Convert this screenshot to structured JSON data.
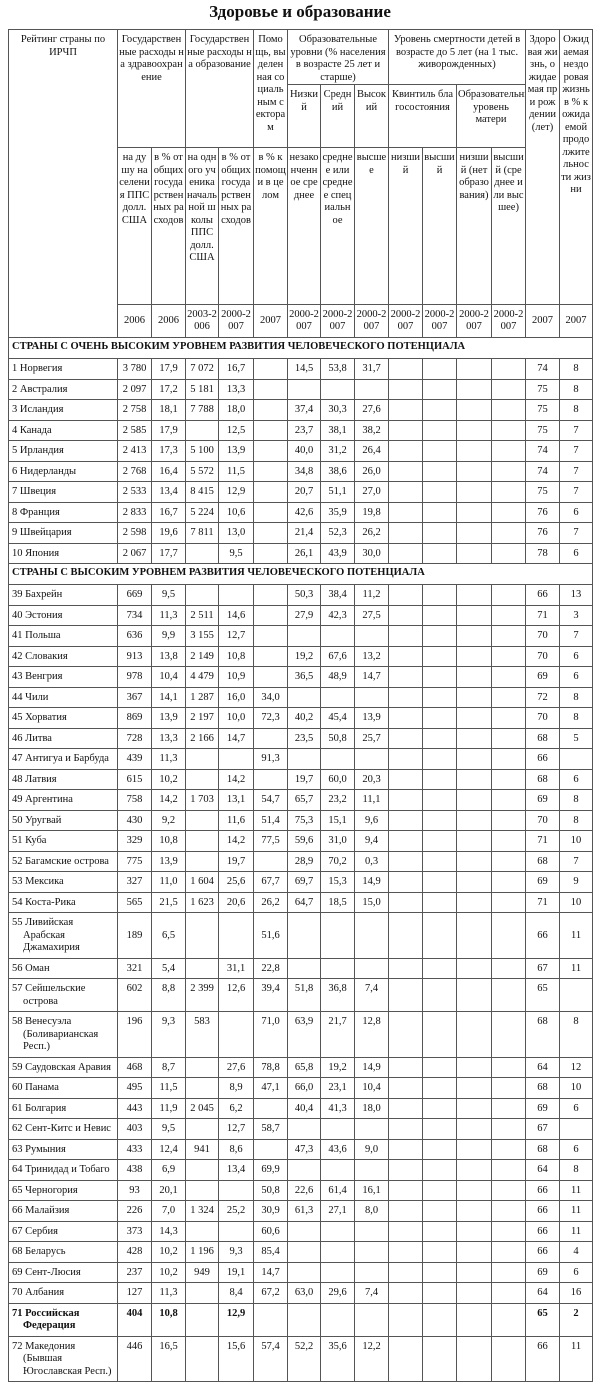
{
  "title": "Здоровье и образование",
  "header": {
    "rank": "Рейтинг страны по ИРЧП",
    "health_spend": "Государственные расходы на здравоохранение",
    "edu_spend": "Государственные расходы на образование",
    "social_aid": "Помощь, выделенная социальным секторам",
    "edu_levels": "Образовательные уровни (% населения в возрасте 25 лет и старше)",
    "child_mortality": "Уровень смертности детей в возрасте до 5 лет (на 1 тыс. живорожденных)",
    "healthy_life": "Здоровая жизнь, ожидаемая при рождении (лет)",
    "unhealthy_life": "Ожидаемая нездоровая жизнь в % к ожидаемой продолжительности жизни",
    "low": "Низкий",
    "mid": "Средний",
    "high": "Высокий",
    "wealth_quintile": "Квинтиль благосостояния",
    "mother_edu": "Образовательный уровень матери",
    "sub": [
      "на душу населения ППС долл. США",
      "в % от общих государственных расходов",
      "на одного ученика начальной школы ППС долл. США",
      "в % от общих государственных расходов",
      "в % к помощи в целом",
      "незаконченное среднее",
      "среднее или среднее специальное",
      "высшее",
      "низший",
      "высший",
      "низший (нет образования)",
      "высший (среднее или высшее)"
    ],
    "years": [
      "2006",
      "2006",
      "2003-2006",
      "2000-2007",
      "2007",
      "2000-2007",
      "2000-2007",
      "2000-2007",
      "2000-2007",
      "2000-2007",
      "2000-2007",
      "2000-2007",
      "2007",
      "2007"
    ]
  },
  "sections": [
    {
      "title": "СТРАНЫ С ОЧЕНЬ ВЫСОКИМ УРОВНЕМ РАЗВИТИЯ ЧЕЛОВЕЧЕСКОГО ПОТЕНЦИАЛА",
      "rows": [
        {
          "cells": [
            "1 Норвегия",
            "3 780",
            "17,9",
            "7 072",
            "16,7",
            "",
            "14,5",
            "53,8",
            "31,7",
            "",
            "",
            "",
            "",
            "74",
            "8"
          ]
        },
        {
          "cells": [
            "2 Австралия",
            "2 097",
            "17,2",
            "5 181",
            "13,3",
            "",
            "",
            "",
            "",
            "",
            "",
            "",
            "",
            "75",
            "8"
          ]
        },
        {
          "cells": [
            "3 Исландия",
            "2 758",
            "18,1",
            "7 788",
            "18,0",
            "",
            "37,4",
            "30,3",
            "27,6",
            "",
            "",
            "",
            "",
            "75",
            "8"
          ]
        },
        {
          "cells": [
            "4 Канада",
            "2 585",
            "17,9",
            "",
            "12,5",
            "",
            "23,7",
            "38,1",
            "38,2",
            "",
            "",
            "",
            "",
            "75",
            "7"
          ]
        },
        {
          "cells": [
            "5 Ирландия",
            "2 413",
            "17,3",
            "5 100",
            "13,9",
            "",
            "40,0",
            "31,2",
            "26,4",
            "",
            "",
            "",
            "",
            "74",
            "7"
          ]
        },
        {
          "cells": [
            "6 Нидерланды",
            "2 768",
            "16,4",
            "5 572",
            "11,5",
            "",
            "34,8",
            "38,6",
            "26,0",
            "",
            "",
            "",
            "",
            "74",
            "7"
          ]
        },
        {
          "cells": [
            "7 Швеция",
            "2 533",
            "13,4",
            "8 415",
            "12,9",
            "",
            "20,7",
            "51,1",
            "27,0",
            "",
            "",
            "",
            "",
            "75",
            "7"
          ]
        },
        {
          "cells": [
            "8 Франция",
            "2 833",
            "16,7",
            "5 224",
            "10,6",
            "",
            "42,6",
            "35,9",
            "19,8",
            "",
            "",
            "",
            "",
            "76",
            "6"
          ]
        },
        {
          "cells": [
            "9 Швейцария",
            "2 598",
            "19,6",
            "7 811",
            "13,0",
            "",
            "21,4",
            "52,3",
            "26,2",
            "",
            "",
            "",
            "",
            "76",
            "7"
          ]
        },
        {
          "cells": [
            "10 Япония",
            "2 067",
            "17,7",
            "",
            "9,5",
            "",
            "26,1",
            "43,9",
            "30,0",
            "",
            "",
            "",
            "",
            "78",
            "6"
          ]
        }
      ]
    },
    {
      "title": "СТРАНЫ С ВЫСОКИМ УРОВНЕМ РАЗВИТИЯ ЧЕЛОВЕЧЕСКОГО ПОТЕНЦИАЛА",
      "rows": [
        {
          "cells": [
            "39 Бахрейн",
            "669",
            "9,5",
            "",
            "",
            "",
            "50,3",
            "38,4",
            "11,2",
            "",
            "",
            "",
            "",
            "66",
            "13"
          ]
        },
        {
          "cells": [
            "40 Эстония",
            "734",
            "11,3",
            "2 511",
            "14,6",
            "",
            "27,9",
            "42,3",
            "27,5",
            "",
            "",
            "",
            "",
            "71",
            "3"
          ]
        },
        {
          "cells": [
            "41 Польша",
            "636",
            "9,9",
            "3 155",
            "12,7",
            "",
            "",
            "",
            "",
            "",
            "",
            "",
            "",
            "70",
            "7"
          ]
        },
        {
          "cells": [
            "42 Словакия",
            "913",
            "13,8",
            "2 149",
            "10,8",
            "",
            "19,2",
            "67,6",
            "13,2",
            "",
            "",
            "",
            "",
            "70",
            "6"
          ]
        },
        {
          "cells": [
            "43 Венгрия",
            "978",
            "10,4",
            "4 479",
            "10,9",
            "",
            "36,5",
            "48,9",
            "14,7",
            "",
            "",
            "",
            "",
            "69",
            "6"
          ]
        },
        {
          "cells": [
            "44 Чили",
            "367",
            "14,1",
            "1 287",
            "16,0",
            "34,0",
            "",
            "",
            "",
            "",
            "",
            "",
            "",
            "72",
            "8"
          ]
        },
        {
          "cells": [
            "45 Хорватия",
            "869",
            "13,9",
            "2 197",
            "10,0",
            "72,3",
            "40,2",
            "45,4",
            "13,9",
            "",
            "",
            "",
            "",
            "70",
            "8"
          ]
        },
        {
          "cells": [
            "46 Литва",
            "728",
            "13,3",
            "2 166",
            "14,7",
            "",
            "23,5",
            "50,8",
            "25,7",
            "",
            "",
            "",
            "",
            "68",
            "5"
          ]
        },
        {
          "cells": [
            "47 Антигуа и Барбуда",
            "439",
            "11,3",
            "",
            "",
            "91,3",
            "",
            "",
            "",
            "",
            "",
            "",
            "",
            "66",
            ""
          ]
        },
        {
          "cells": [
            "48 Латвия",
            "615",
            "10,2",
            "",
            "14,2",
            "",
            "19,7",
            "60,0",
            "20,3",
            "",
            "",
            "",
            "",
            "68",
            "6"
          ]
        },
        {
          "cells": [
            "49 Аргентина",
            "758",
            "14,2",
            "1 703",
            "13,1",
            "54,7",
            "65,7",
            "23,2",
            "11,1",
            "",
            "",
            "",
            "",
            "69",
            "8"
          ]
        },
        {
          "cells": [
            "50 Уругвай",
            "430",
            "9,2",
            "",
            "11,6",
            "51,4",
            "75,3",
            "15,1",
            "9,6",
            "",
            "",
            "",
            "",
            "70",
            "8"
          ]
        },
        {
          "cells": [
            "51 Куба",
            "329",
            "10,8",
            "",
            "14,2",
            "77,5",
            "59,6",
            "31,0",
            "9,4",
            "",
            "",
            "",
            "",
            "71",
            "10"
          ]
        },
        {
          "cells": [
            "52 Багамские острова",
            "775",
            "13,9",
            "",
            "19,7",
            "",
            "28,9",
            "70,2",
            "0,3",
            "",
            "",
            "",
            "",
            "68",
            "7"
          ]
        },
        {
          "cells": [
            "53 Мексика",
            "327",
            "11,0",
            "1 604",
            "25,6",
            "67,7",
            "69,7",
            "15,3",
            "14,9",
            "",
            "",
            "",
            "",
            "69",
            "9"
          ]
        },
        {
          "cells": [
            "54 Коста-Рика",
            "565",
            "21,5",
            "1 623",
            "20,6",
            "26,2",
            "64,7",
            "18,5",
            "15,0",
            "",
            "",
            "",
            "",
            "71",
            "10"
          ]
        },
        {
          "cells": [
            "55 Ливийская Арабская Джамахирия",
            "189",
            "6,5",
            "",
            "",
            "51,6",
            "",
            "",
            "",
            "",
            "",
            "",
            "",
            "66",
            "11"
          ],
          "middle": true
        },
        {
          "cells": [
            "56 Оман",
            "321",
            "5,4",
            "",
            "31,1",
            "22,8",
            "",
            "",
            "",
            "",
            "",
            "",
            "",
            "67",
            "11"
          ]
        },
        {
          "cells": [
            "57 Сейшельские острова",
            "602",
            "8,8",
            "2 399",
            "12,6",
            "39,4",
            "51,8",
            "36,8",
            "7,4",
            "",
            "",
            "",
            "",
            "65",
            ""
          ]
        },
        {
          "cells": [
            "58 Венесуэла (Боливарианская Респ.)",
            "196",
            "9,3",
            "583",
            "",
            "71,0",
            "63,9",
            "21,7",
            "12,8",
            "",
            "",
            "",
            "",
            "68",
            "8"
          ]
        },
        {
          "cells": [
            "59 Саудовская Аравия",
            "468",
            "8,7",
            "",
            "27,6",
            "78,8",
            "65,8",
            "19,2",
            "14,9",
            "",
            "",
            "",
            "",
            "64",
            "12"
          ]
        },
        {
          "cells": [
            "60 Панама",
            "495",
            "11,5",
            "",
            "8,9",
            "47,1",
            "66,0",
            "23,1",
            "10,4",
            "",
            "",
            "",
            "",
            "68",
            "10"
          ]
        },
        {
          "cells": [
            "61 Болгария",
            "443",
            "11,9",
            "2 045",
            "6,2",
            "",
            "40,4",
            "41,3",
            "18,0",
            "",
            "",
            "",
            "",
            "69",
            "6"
          ]
        },
        {
          "cells": [
            "62 Сент-Китс и Невис",
            "403",
            "9,5",
            "",
            "12,7",
            "58,7",
            "",
            "",
            "",
            "",
            "",
            "",
            "",
            "67",
            ""
          ]
        },
        {
          "cells": [
            "63 Румыния",
            "433",
            "12,4",
            "941",
            "8,6",
            "",
            "47,3",
            "43,6",
            "9,0",
            "",
            "",
            "",
            "",
            "68",
            "6"
          ]
        },
        {
          "cells": [
            "64 Тринидад и Тобаго",
            "438",
            "6,9",
            "",
            "13,4",
            "69,9",
            "",
            "",
            "",
            "",
            "",
            "",
            "",
            "64",
            "8"
          ]
        },
        {
          "cells": [
            "65 Черногория",
            "93",
            "20,1",
            "",
            "",
            "50,8",
            "22,6",
            "61,4",
            "16,1",
            "",
            "",
            "",
            "",
            "66",
            "11"
          ]
        },
        {
          "cells": [
            "66 Малайзия",
            "226",
            "7,0",
            "1 324",
            "25,2",
            "30,9",
            "61,3",
            "27,1",
            "8,0",
            "",
            "",
            "",
            "",
            "66",
            "11"
          ]
        },
        {
          "cells": [
            "67 Сербия",
            "373",
            "14,3",
            "",
            "",
            "60,6",
            "",
            "",
            "",
            "",
            "",
            "",
            "",
            "66",
            "11"
          ]
        },
        {
          "cells": [
            "68 Беларусь",
            "428",
            "10,2",
            "1 196",
            "9,3",
            "85,4",
            "",
            "",
            "",
            "",
            "",
            "",
            "",
            "66",
            "4"
          ]
        },
        {
          "cells": [
            "69 Сент-Люсия",
            "237",
            "10,2",
            "949",
            "19,1",
            "14,7",
            "",
            "",
            "",
            "",
            "",
            "",
            "",
            "69",
            "6"
          ]
        },
        {
          "cells": [
            "70 Албания",
            "127",
            "11,3",
            "",
            "8,4",
            "67,2",
            "63,0",
            "29,6",
            "7,4",
            "",
            "",
            "",
            "",
            "64",
            "16"
          ]
        },
        {
          "cells": [
            "71 Российская Федерация",
            "404",
            "10,8",
            "",
            "12,9",
            "",
            "",
            "",
            "",
            "",
            "",
            "",
            "",
            "65",
            "2"
          ],
          "bold": true
        },
        {
          "cells": [
            "72 Македония (Бывшая Югославская Респ.)",
            "446",
            "16,5",
            "",
            "15,6",
            "57,4",
            "52,2",
            "35,6",
            "12,2",
            "",
            "",
            "",
            "",
            "66",
            "11"
          ]
        }
      ]
    }
  ]
}
